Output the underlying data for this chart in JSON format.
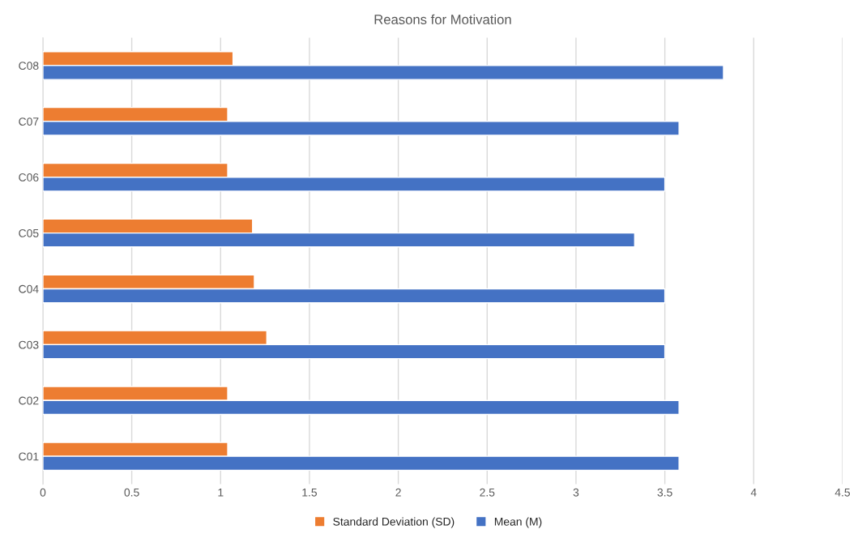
{
  "chart_data": {
    "type": "bar",
    "orientation": "horizontal",
    "title": "Reasons for Motivation",
    "categories": [
      "C08",
      "C07",
      "C06",
      "C05",
      "C04",
      "C03",
      "C02",
      "C01"
    ],
    "series": [
      {
        "name": "Standard Deviation (SD)",
        "color": "#ed7d31",
        "values": [
          1.07,
          1.04,
          1.04,
          1.18,
          1.19,
          1.26,
          1.04,
          1.04
        ]
      },
      {
        "name": "Mean (M)",
        "color": "#4472c4",
        "values": [
          3.83,
          3.58,
          3.5,
          3.33,
          3.5,
          3.5,
          3.58,
          3.58
        ]
      }
    ],
    "xlim": [
      0,
      4.5
    ],
    "xticks": [
      0,
      0.5,
      1,
      1.5,
      2,
      2.5,
      3,
      3.5,
      4,
      4.5
    ],
    "grid": "x",
    "legend": "bottom"
  }
}
